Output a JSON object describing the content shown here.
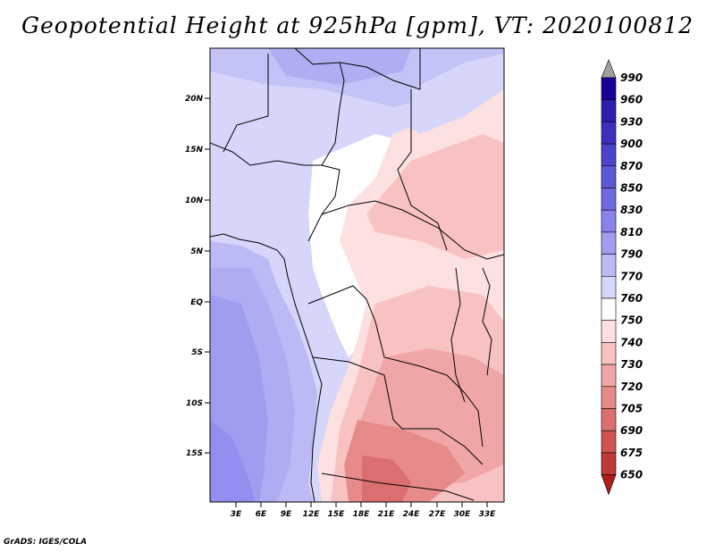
{
  "title": "Geopotential Height at 925hPa [gpm], VT: 2020100812",
  "credit": "GrADS: IGES/COLA",
  "map": {
    "lat_labels": [
      "20N",
      "15N",
      "10N",
      "5N",
      "EQ",
      "5S",
      "10S",
      "15S"
    ],
    "lon_labels": [
      "3E",
      "6E",
      "9E",
      "12E",
      "15E",
      "18E",
      "21E",
      "24E",
      "27E",
      "30E",
      "33E"
    ]
  },
  "colorbar": {
    "levels": [
      "990",
      "960",
      "930",
      "900",
      "870",
      "850",
      "830",
      "810",
      "790",
      "770",
      "760",
      "750",
      "740",
      "730",
      "720",
      "705",
      "690",
      "675",
      "650"
    ],
    "colors": [
      "#1a0099",
      "#2b1fb0",
      "#3a30c0",
      "#4a44cc",
      "#5c58d6",
      "#6e6be0",
      "#8684ea",
      "#9f9df0",
      "#bcbaf5",
      "#d6d6fb",
      "#ffffff",
      "#fde0e0",
      "#f8c2c2",
      "#f0a6a6",
      "#e68a8a",
      "#db6f6f",
      "#cf5353",
      "#c13838",
      "#b01d1d"
    ],
    "top_color": "#a0a0a0"
  }
}
